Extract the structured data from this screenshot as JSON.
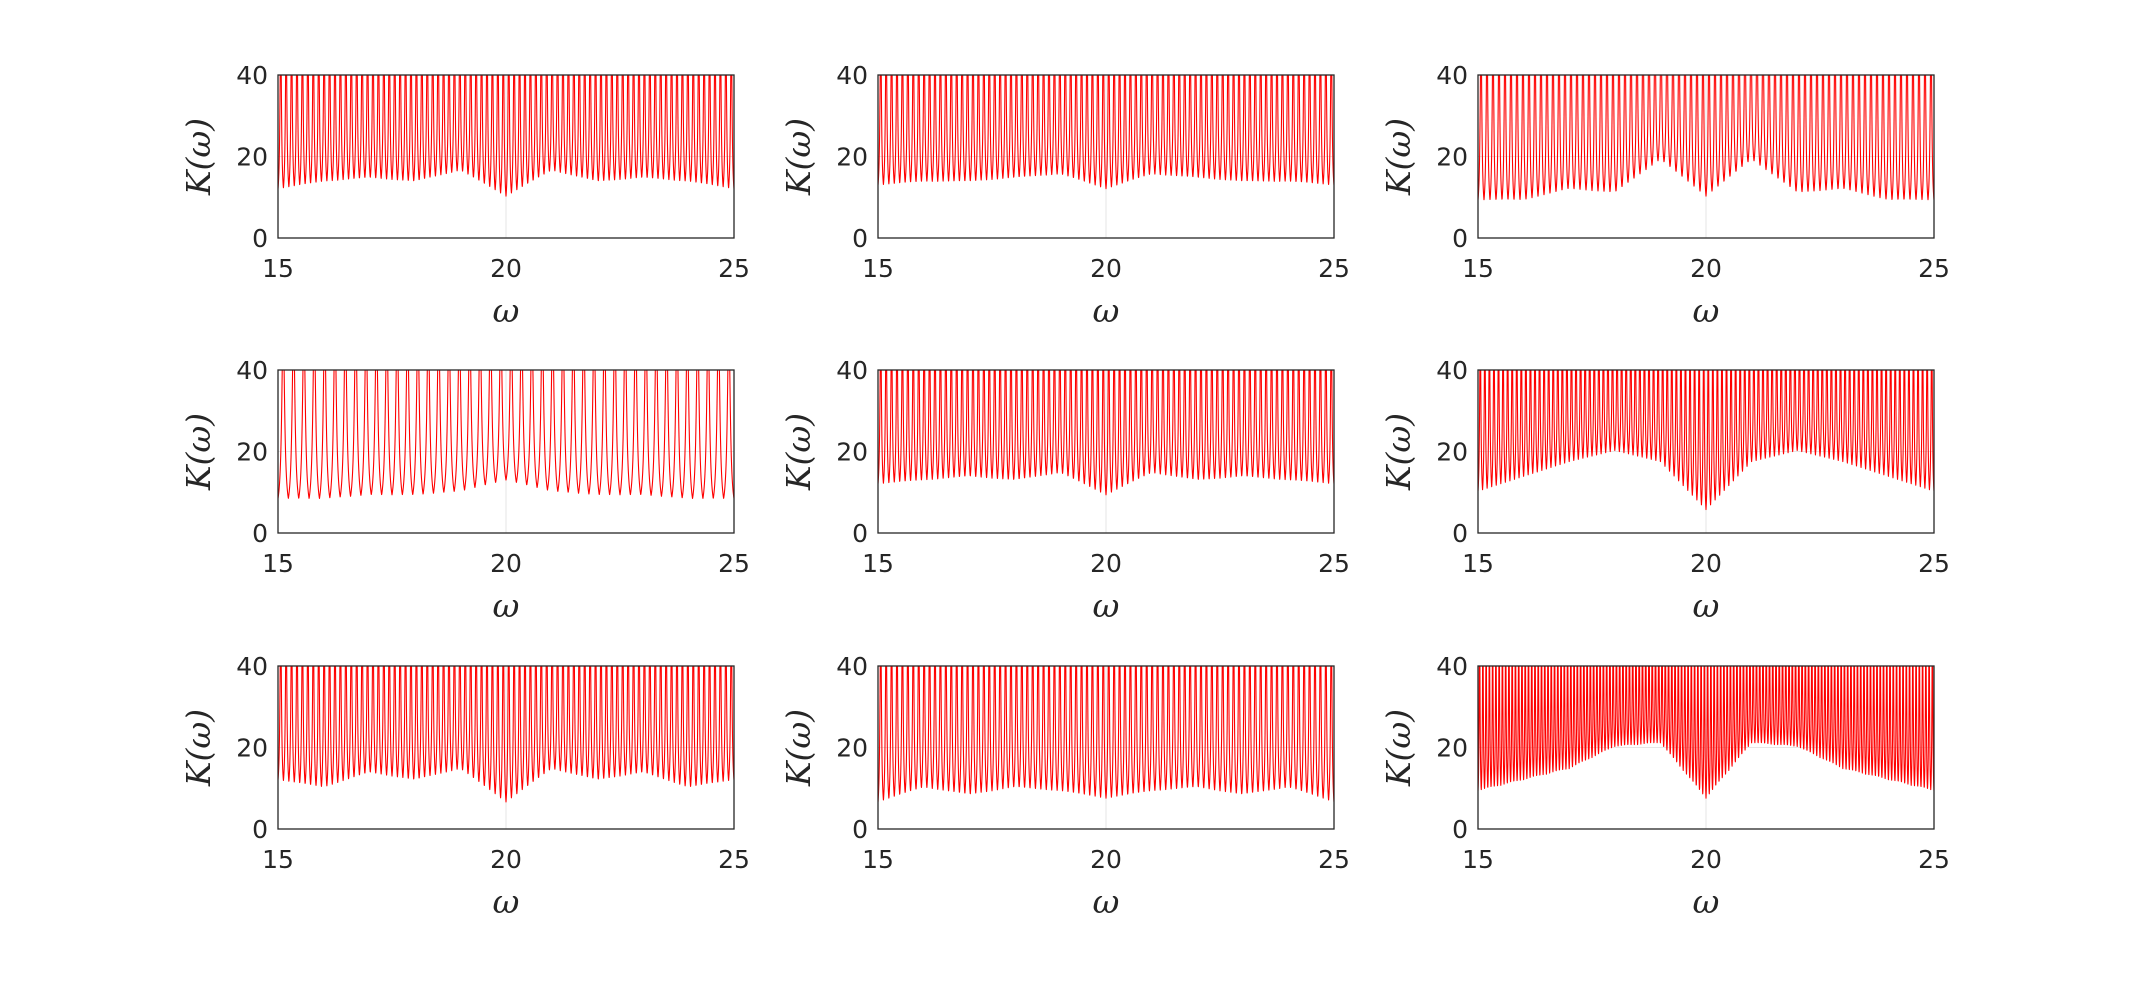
{
  "colors": {
    "series": "#ff0000",
    "axis": "#262626",
    "grid": "#e6e6e6"
  },
  "chart_data": [
    {
      "type": "line",
      "panel": 1,
      "xlabel": "ω",
      "ylabel": "K(ω)",
      "xlim": [
        15,
        25
      ],
      "ylim": [
        0,
        40
      ],
      "xticks": [
        15,
        20,
        25
      ],
      "yticks": [
        0,
        20,
        40
      ],
      "xtick_labels": [
        "15",
        "20",
        "25"
      ],
      "ytick_labels": [
        "0",
        "20",
        "40"
      ],
      "grid": true,
      "clipped_at_top": true,
      "series": [
        {
          "color": "#ff0000",
          "peak_count": 84,
          "peak_max": 40,
          "baseline": [
            {
              "x": 15,
              "y": 8
            },
            {
              "x": 16,
              "y": 10
            },
            {
              "x": 17,
              "y": 11
            },
            {
              "x": 18,
              "y": 10
            },
            {
              "x": 19,
              "y": 13
            },
            {
              "x": 20,
              "y": 6
            },
            {
              "x": 21,
              "y": 13
            },
            {
              "x": 22,
              "y": 10
            },
            {
              "x": 23,
              "y": 11
            },
            {
              "x": 24,
              "y": 10
            },
            {
              "x": 25,
              "y": 8
            }
          ]
        }
      ]
    },
    {
      "type": "line",
      "panel": 2,
      "xlabel": "ω",
      "ylabel": "K(ω)",
      "xlim": [
        15,
        25
      ],
      "ylim": [
        0,
        40
      ],
      "xticks": [
        15,
        20,
        25
      ],
      "yticks": [
        0,
        20,
        40
      ],
      "xtick_labels": [
        "15",
        "20",
        "25"
      ],
      "ytick_labels": [
        "0",
        "20",
        "40"
      ],
      "grid": true,
      "clipped_at_top": true,
      "series": [
        {
          "color": "#ff0000",
          "peak_count": 84,
          "peak_max": 40,
          "baseline": [
            {
              "x": 15,
              "y": 9
            },
            {
              "x": 16,
              "y": 10
            },
            {
              "x": 17,
              "y": 10
            },
            {
              "x": 18,
              "y": 11
            },
            {
              "x": 19,
              "y": 12
            },
            {
              "x": 20,
              "y": 8
            },
            {
              "x": 21,
              "y": 12
            },
            {
              "x": 22,
              "y": 11
            },
            {
              "x": 23,
              "y": 10
            },
            {
              "x": 24,
              "y": 10
            },
            {
              "x": 25,
              "y": 9
            }
          ]
        }
      ]
    },
    {
      "type": "line",
      "panel": 3,
      "xlabel": "ω",
      "ylabel": "K(ω)",
      "xlim": [
        15,
        25
      ],
      "ylim": [
        0,
        40
      ],
      "xticks": [
        15,
        20,
        25
      ],
      "yticks": [
        0,
        20,
        40
      ],
      "xtick_labels": [
        "15",
        "20",
        "25"
      ],
      "ytick_labels": [
        "0",
        "20",
        "40"
      ],
      "grid": true,
      "clipped_at_top": true,
      "series": [
        {
          "color": "#ff0000",
          "peak_count": 76,
          "peak_max": 40,
          "baseline": [
            {
              "x": 15,
              "y": 5
            },
            {
              "x": 16,
              "y": 5
            },
            {
              "x": 17,
              "y": 8
            },
            {
              "x": 18,
              "y": 7
            },
            {
              "x": 19,
              "y": 16
            },
            {
              "x": 20,
              "y": 6
            },
            {
              "x": 21,
              "y": 16
            },
            {
              "x": 22,
              "y": 7
            },
            {
              "x": 23,
              "y": 8
            },
            {
              "x": 24,
              "y": 5
            },
            {
              "x": 25,
              "y": 5
            }
          ]
        }
      ]
    },
    {
      "type": "line",
      "panel": 4,
      "xlabel": "ω",
      "ylabel": "K(ω)",
      "xlim": [
        15,
        25
      ],
      "ylim": [
        0,
        40
      ],
      "xticks": [
        15,
        20,
        25
      ],
      "yticks": [
        0,
        20,
        40
      ],
      "xtick_labels": [
        "15",
        "20",
        "25"
      ],
      "ytick_labels": [
        "0",
        "20",
        "40"
      ],
      "grid": true,
      "clipped_at_top": true,
      "series": [
        {
          "color": "#ff0000",
          "peak_count": 44,
          "peak_max": 40,
          "baseline": [
            {
              "x": 15,
              "y": 4
            },
            {
              "x": 16,
              "y": 4
            },
            {
              "x": 17,
              "y": 5
            },
            {
              "x": 18,
              "y": 5
            },
            {
              "x": 19,
              "y": 6
            },
            {
              "x": 20,
              "y": 9
            },
            {
              "x": 21,
              "y": 6
            },
            {
              "x": 22,
              "y": 5
            },
            {
              "x": 23,
              "y": 5
            },
            {
              "x": 24,
              "y": 4
            },
            {
              "x": 25,
              "y": 4
            }
          ]
        }
      ]
    },
    {
      "type": "line",
      "panel": 5,
      "xlabel": "ω",
      "ylabel": "K(ω)",
      "xlim": [
        15,
        25
      ],
      "ylim": [
        0,
        40
      ],
      "xticks": [
        15,
        20,
        25
      ],
      "yticks": [
        0,
        20,
        40
      ],
      "xtick_labels": [
        "15",
        "20",
        "25"
      ],
      "ytick_labels": [
        "0",
        "20",
        "40"
      ],
      "grid": true,
      "clipped_at_top": true,
      "series": [
        {
          "color": "#ff0000",
          "peak_count": 84,
          "peak_max": 40,
          "baseline": [
            {
              "x": 15,
              "y": 8
            },
            {
              "x": 16,
              "y": 9
            },
            {
              "x": 17,
              "y": 10
            },
            {
              "x": 18,
              "y": 9
            },
            {
              "x": 19,
              "y": 11
            },
            {
              "x": 20,
              "y": 5
            },
            {
              "x": 21,
              "y": 11
            },
            {
              "x": 22,
              "y": 9
            },
            {
              "x": 23,
              "y": 10
            },
            {
              "x": 24,
              "y": 9
            },
            {
              "x": 25,
              "y": 8
            }
          ]
        }
      ]
    },
    {
      "type": "line",
      "panel": 6,
      "xlabel": "ω",
      "ylabel": "K(ω)",
      "xlim": [
        15,
        25
      ],
      "ylim": [
        0,
        40
      ],
      "xticks": [
        15,
        20,
        25
      ],
      "yticks": [
        0,
        20,
        40
      ],
      "xtick_labels": [
        "15",
        "20",
        "25"
      ],
      "ytick_labels": [
        "0",
        "20",
        "40"
      ],
      "grid": true,
      "clipped_at_top": true,
      "series": [
        {
          "color": "#ff0000",
          "peak_count": 100,
          "peak_max": 40,
          "baseline": [
            {
              "x": 15,
              "y": 6
            },
            {
              "x": 16,
              "y": 10
            },
            {
              "x": 17,
              "y": 14
            },
            {
              "x": 18,
              "y": 17
            },
            {
              "x": 19,
              "y": 14
            },
            {
              "x": 20,
              "y": 1
            },
            {
              "x": 21,
              "y": 14
            },
            {
              "x": 22,
              "y": 17
            },
            {
              "x": 23,
              "y": 14
            },
            {
              "x": 24,
              "y": 10
            },
            {
              "x": 25,
              "y": 6
            }
          ]
        }
      ]
    },
    {
      "type": "line",
      "panel": 7,
      "xlabel": "ω",
      "ylabel": "K(ω)",
      "xlim": [
        15,
        25
      ],
      "ylim": [
        0,
        40
      ],
      "xticks": [
        15,
        20,
        25
      ],
      "yticks": [
        0,
        20,
        40
      ],
      "xtick_labels": [
        "15",
        "20",
        "25"
      ],
      "ytick_labels": [
        "0",
        "20",
        "40"
      ],
      "grid": true,
      "clipped_at_top": true,
      "series": [
        {
          "color": "#ff0000",
          "peak_count": 84,
          "peak_max": 40,
          "baseline": [
            {
              "x": 15,
              "y": 8
            },
            {
              "x": 16,
              "y": 6
            },
            {
              "x": 17,
              "y": 10
            },
            {
              "x": 18,
              "y": 8
            },
            {
              "x": 19,
              "y": 11
            },
            {
              "x": 20,
              "y": 2
            },
            {
              "x": 21,
              "y": 11
            },
            {
              "x": 22,
              "y": 8
            },
            {
              "x": 23,
              "y": 10
            },
            {
              "x": 24,
              "y": 6
            },
            {
              "x": 25,
              "y": 8
            }
          ]
        }
      ]
    },
    {
      "type": "line",
      "panel": 8,
      "xlabel": "ω",
      "ylabel": "K(ω)",
      "xlim": [
        15,
        25
      ],
      "ylim": [
        0,
        40
      ],
      "xticks": [
        15,
        20,
        25
      ],
      "yticks": [
        0,
        20,
        40
      ],
      "xtick_labels": [
        "15",
        "20",
        "25"
      ],
      "ytick_labels": [
        "0",
        "20",
        "40"
      ],
      "grid": true,
      "clipped_at_top": true,
      "series": [
        {
          "color": "#ff0000",
          "peak_count": 84,
          "peak_max": 40,
          "baseline": [
            {
              "x": 15,
              "y": 2
            },
            {
              "x": 16,
              "y": 6
            },
            {
              "x": 17,
              "y": 4
            },
            {
              "x": 18,
              "y": 6
            },
            {
              "x": 19,
              "y": 5
            },
            {
              "x": 20,
              "y": 3
            },
            {
              "x": 21,
              "y": 5
            },
            {
              "x": 22,
              "y": 6
            },
            {
              "x": 23,
              "y": 4
            },
            {
              "x": 24,
              "y": 6
            },
            {
              "x": 25,
              "y": 2
            }
          ]
        }
      ]
    },
    {
      "type": "line",
      "panel": 9,
      "xlabel": "ω",
      "ylabel": "K(ω)",
      "xlim": [
        15,
        25
      ],
      "ylim": [
        0,
        40
      ],
      "xticks": [
        15,
        20,
        25
      ],
      "yticks": [
        0,
        20,
        40
      ],
      "xtick_labels": [
        "15",
        "20",
        "25"
      ],
      "ytick_labels": [
        "0",
        "20",
        "40"
      ],
      "grid": true,
      "clipped_at_top": true,
      "series": [
        {
          "color": "#ff0000",
          "peak_count": 140,
          "peak_max": 40,
          "baseline": [
            {
              "x": 15,
              "y": 5
            },
            {
              "x": 16,
              "y": 8
            },
            {
              "x": 17,
              "y": 11
            },
            {
              "x": 18,
              "y": 17
            },
            {
              "x": 19,
              "y": 18
            },
            {
              "x": 20,
              "y": 3
            },
            {
              "x": 21,
              "y": 18
            },
            {
              "x": 22,
              "y": 17
            },
            {
              "x": 23,
              "y": 11
            },
            {
              "x": 24,
              "y": 8
            },
            {
              "x": 25,
              "y": 5
            }
          ]
        }
      ]
    }
  ]
}
